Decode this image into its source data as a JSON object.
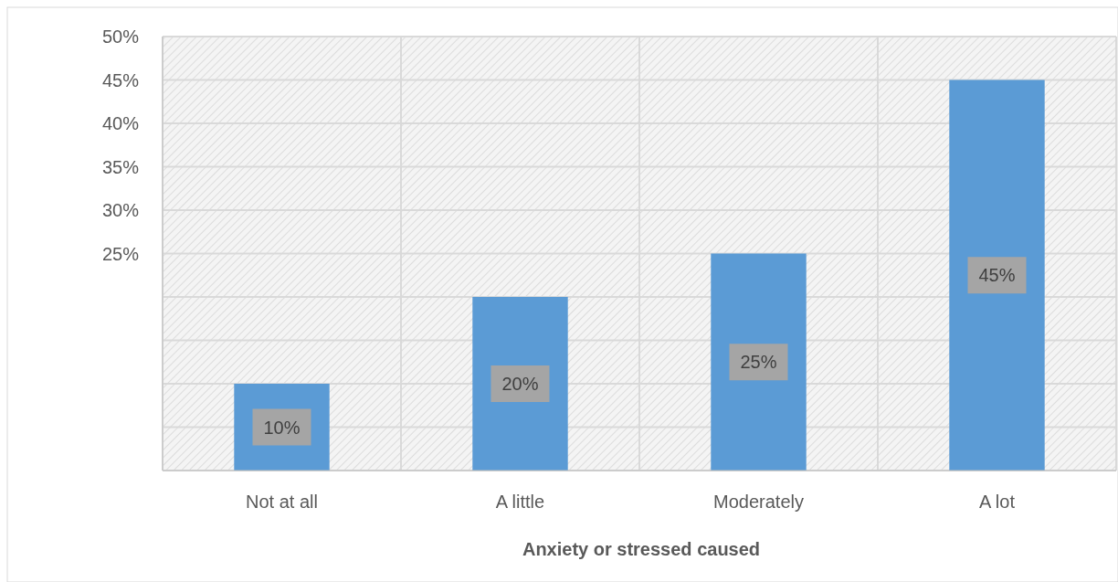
{
  "chart_data": {
    "type": "bar",
    "xlabel": "Anxiety or stressed caused",
    "categories": [
      "Not at all",
      "A little",
      "Moderately",
      "A lot"
    ],
    "values": [
      10,
      20,
      25,
      45
    ],
    "value_labels": [
      "10%",
      "20%",
      "25%",
      "45%"
    ],
    "color": "#5b9bd5",
    "ylim": [
      0,
      50
    ],
    "yticks": [
      {
        "value": 25,
        "label": "25%"
      },
      {
        "value": 30,
        "label": "30%"
      },
      {
        "value": 35,
        "label": "35%"
      },
      {
        "value": 40,
        "label": "40%"
      },
      {
        "value": 45,
        "label": "45%"
      },
      {
        "value": 50,
        "label": "50%"
      }
    ],
    "grid": true
  }
}
